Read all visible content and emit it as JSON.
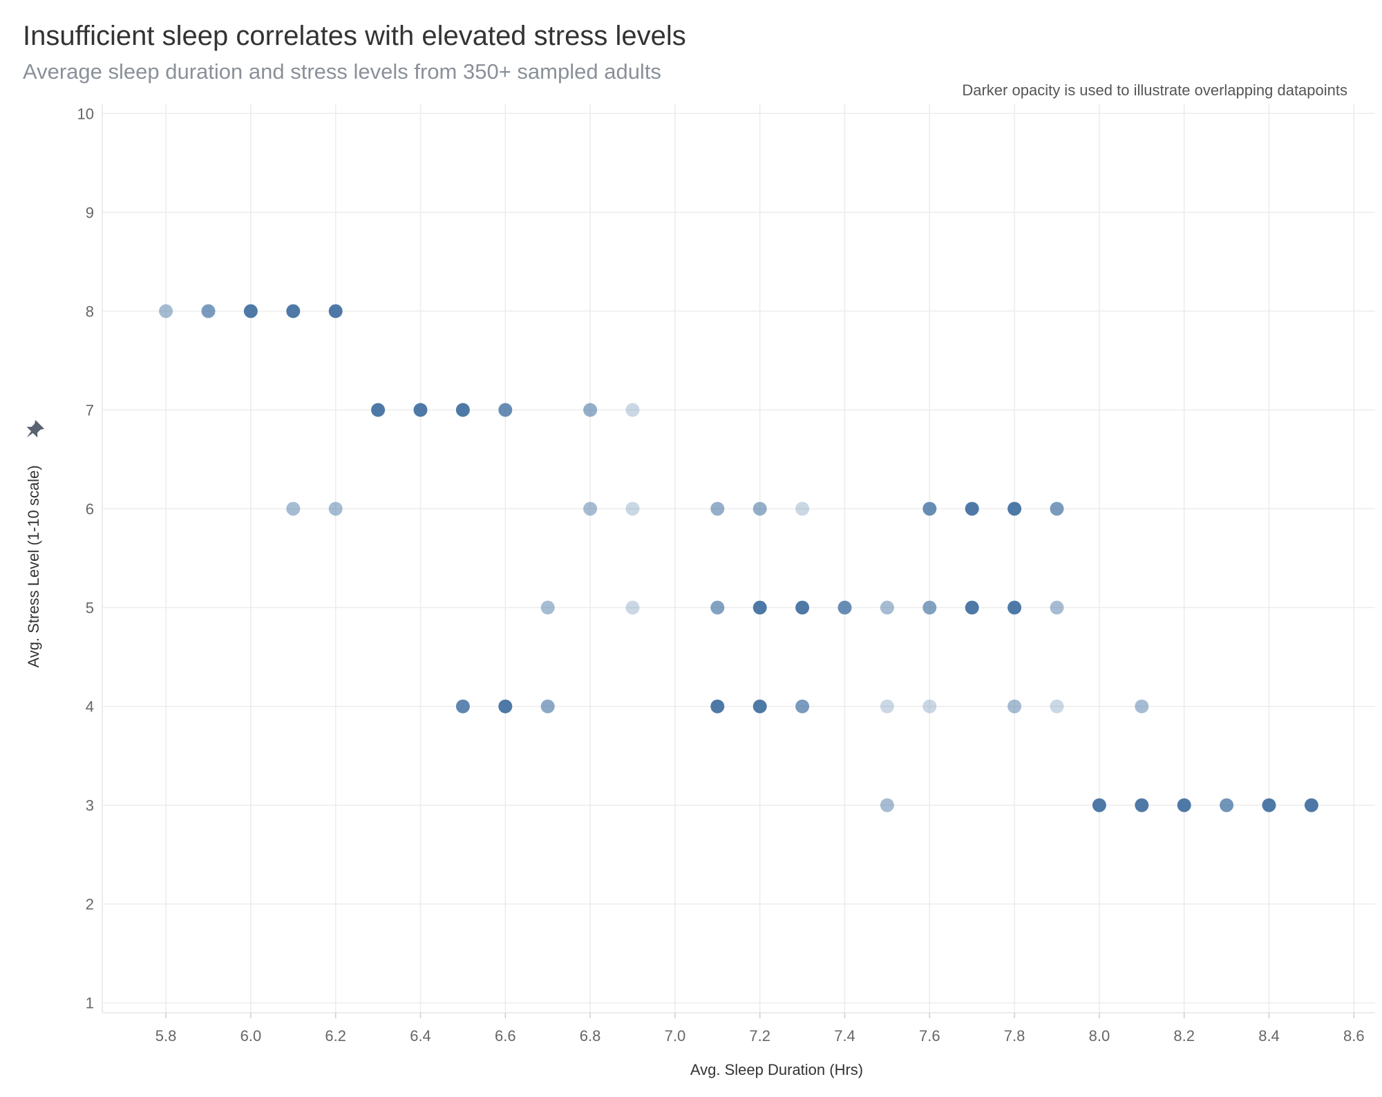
{
  "header": {
    "title": "Insufficient sleep correlates with elevated stress levels",
    "subtitle": "Average sleep duration and stress levels from 350+ sampled adults",
    "note": "Darker opacity is used to illustrate overlapping datapoints"
  },
  "colors": {
    "point": "#4e79a7",
    "grid": "#ececec",
    "tick": "#666666",
    "pin": "#5a6270"
  },
  "icons": {
    "axis_pin": "pin-icon"
  },
  "chart_data": {
    "type": "scatter",
    "xlabel": "Avg. Sleep Duration (Hrs)",
    "ylabel": "Avg. Stress Level (1-10 scale)",
    "xlim": [
      5.65,
      8.65
    ],
    "ylim": [
      0.9,
      10.1
    ],
    "x_ticks": [
      "5.8",
      "6.0",
      "6.2",
      "6.4",
      "6.6",
      "6.8",
      "7.0",
      "7.2",
      "7.4",
      "7.6",
      "7.8",
      "8.0",
      "8.2",
      "8.4",
      "8.6"
    ],
    "y_ticks": [
      "1",
      "2",
      "3",
      "4",
      "5",
      "6",
      "7",
      "8",
      "9",
      "10"
    ],
    "grid": true,
    "opacity_meaning": "overlapping datapoints",
    "points": [
      {
        "x": 5.8,
        "y": 8,
        "opacity": 0.5
      },
      {
        "x": 5.9,
        "y": 8,
        "opacity": 0.75
      },
      {
        "x": 6.0,
        "y": 8,
        "opacity": 1.0
      },
      {
        "x": 6.1,
        "y": 8,
        "opacity": 1.0
      },
      {
        "x": 6.2,
        "y": 8,
        "opacity": 1.0
      },
      {
        "x": 6.3,
        "y": 7,
        "opacity": 1.0
      },
      {
        "x": 6.4,
        "y": 7,
        "opacity": 1.0
      },
      {
        "x": 6.5,
        "y": 7,
        "opacity": 1.0
      },
      {
        "x": 6.6,
        "y": 7,
        "opacity": 0.85
      },
      {
        "x": 6.8,
        "y": 7,
        "opacity": 0.6
      },
      {
        "x": 6.9,
        "y": 7,
        "opacity": 0.3
      },
      {
        "x": 6.1,
        "y": 6,
        "opacity": 0.5
      },
      {
        "x": 6.2,
        "y": 6,
        "opacity": 0.5
      },
      {
        "x": 6.8,
        "y": 6,
        "opacity": 0.5
      },
      {
        "x": 6.9,
        "y": 6,
        "opacity": 0.3
      },
      {
        "x": 7.1,
        "y": 6,
        "opacity": 0.6
      },
      {
        "x": 7.2,
        "y": 6,
        "opacity": 0.6
      },
      {
        "x": 7.3,
        "y": 6,
        "opacity": 0.3
      },
      {
        "x": 7.6,
        "y": 6,
        "opacity": 0.85
      },
      {
        "x": 7.7,
        "y": 6,
        "opacity": 1.0
      },
      {
        "x": 7.8,
        "y": 6,
        "opacity": 1.0
      },
      {
        "x": 7.9,
        "y": 6,
        "opacity": 0.75
      },
      {
        "x": 6.7,
        "y": 5,
        "opacity": 0.5
      },
      {
        "x": 6.9,
        "y": 5,
        "opacity": 0.3
      },
      {
        "x": 7.1,
        "y": 5,
        "opacity": 0.7
      },
      {
        "x": 7.2,
        "y": 5,
        "opacity": 1.0
      },
      {
        "x": 7.3,
        "y": 5,
        "opacity": 1.0
      },
      {
        "x": 7.4,
        "y": 5,
        "opacity": 0.85
      },
      {
        "x": 7.5,
        "y": 5,
        "opacity": 0.5
      },
      {
        "x": 7.6,
        "y": 5,
        "opacity": 0.7
      },
      {
        "x": 7.7,
        "y": 5,
        "opacity": 1.0
      },
      {
        "x": 7.8,
        "y": 5,
        "opacity": 1.0
      },
      {
        "x": 7.9,
        "y": 5,
        "opacity": 0.5
      },
      {
        "x": 6.5,
        "y": 4,
        "opacity": 0.9
      },
      {
        "x": 6.6,
        "y": 4,
        "opacity": 1.0
      },
      {
        "x": 6.7,
        "y": 4,
        "opacity": 0.65
      },
      {
        "x": 7.1,
        "y": 4,
        "opacity": 1.0
      },
      {
        "x": 7.2,
        "y": 4,
        "opacity": 1.0
      },
      {
        "x": 7.3,
        "y": 4,
        "opacity": 0.75
      },
      {
        "x": 7.5,
        "y": 4,
        "opacity": 0.3
      },
      {
        "x": 7.6,
        "y": 4,
        "opacity": 0.3
      },
      {
        "x": 7.8,
        "y": 4,
        "opacity": 0.5
      },
      {
        "x": 7.9,
        "y": 4,
        "opacity": 0.3
      },
      {
        "x": 8.1,
        "y": 4,
        "opacity": 0.5
      },
      {
        "x": 7.5,
        "y": 3,
        "opacity": 0.5
      },
      {
        "x": 8.0,
        "y": 3,
        "opacity": 1.0
      },
      {
        "x": 8.1,
        "y": 3,
        "opacity": 1.0
      },
      {
        "x": 8.2,
        "y": 3,
        "opacity": 1.0
      },
      {
        "x": 8.3,
        "y": 3,
        "opacity": 0.8
      },
      {
        "x": 8.4,
        "y": 3,
        "opacity": 1.0
      },
      {
        "x": 8.5,
        "y": 3,
        "opacity": 1.0
      }
    ]
  }
}
